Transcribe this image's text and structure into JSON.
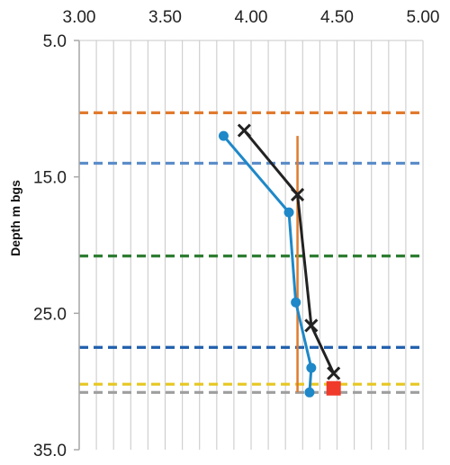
{
  "chart_data": {
    "type": "line",
    "ylabel": "Depth m bgs",
    "xlabel": "",
    "title": "",
    "xlim": [
      3.0,
      5.0
    ],
    "ylim": [
      5.0,
      35.0
    ],
    "y_inverted": true,
    "x_axis_position": "top",
    "grid": "vertical",
    "x_ticks": [
      3.0,
      3.5,
      4.0,
      4.5,
      5.0
    ],
    "x_tick_labels": [
      "3.00",
      "3.50",
      "4.00",
      "4.50",
      "5.00"
    ],
    "y_ticks": [
      5.0,
      15.0,
      25.0,
      35.0
    ],
    "y_tick_labels": [
      "5.0",
      "15.0",
      "25.0",
      "35.0"
    ],
    "reference_lines": [
      {
        "depth": 10.3,
        "color": "#E07B2E"
      },
      {
        "depth": 14.0,
        "color": "#5B8DC9"
      },
      {
        "depth": 20.8,
        "color": "#2E7D32"
      },
      {
        "depth": 27.5,
        "color": "#1F5FAD"
      },
      {
        "depth": 30.2,
        "color": "#E5C722"
      },
      {
        "depth": 30.8,
        "color": "#9E9E9E"
      }
    ],
    "vertical_line": {
      "x": 4.27,
      "y": [
        12.0,
        30.8
      ],
      "color": "#E07B2E"
    },
    "series": [
      {
        "marker": "circle",
        "color": "#1E88C8",
        "x": [
          3.84,
          4.22,
          4.26,
          4.35,
          4.34
        ],
        "y": [
          12.0,
          17.6,
          24.2,
          29.0,
          30.8
        ]
      },
      {
        "marker": "x",
        "color": "#222222",
        "x": [
          3.96,
          4.27,
          4.35,
          4.48
        ],
        "y": [
          11.6,
          16.3,
          25.9,
          29.4
        ]
      }
    ],
    "special_points": [
      {
        "marker": "square",
        "color": "#F03A2A",
        "x": 4.48,
        "y": 30.5
      }
    ]
  }
}
